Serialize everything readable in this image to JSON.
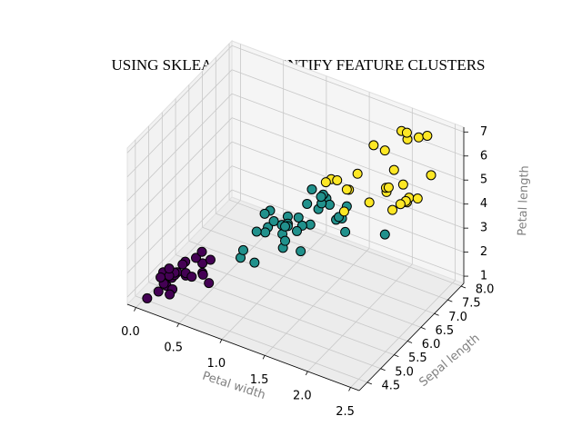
{
  "chart_data": {
    "type": "scatter3d",
    "title": "USING SKLEARN TO IDENTIFY FEATURE CLUSTERS",
    "x_label": "Petal width",
    "y_label": "Sepal length",
    "z_label": "Petal length",
    "xlim": [
      -0.1,
      2.6
    ],
    "ylim": [
      4.2,
      8.1
    ],
    "zlim": [
      0.7,
      7.2
    ],
    "xticks": [
      {
        "value": 0,
        "label": "0.0"
      },
      0.5,
      {
        "value": 1,
        "label": "1.0"
      },
      1.5,
      {
        "value": 2,
        "label": "2.0"
      },
      2.5
    ],
    "yticks": [
      4.5,
      {
        "value": 5,
        "label": "5.0"
      },
      5.5,
      {
        "value": 6,
        "label": "6.0"
      },
      6.5,
      {
        "value": 7,
        "label": "7.0"
      },
      7.5,
      {
        "value": 8,
        "label": "8.0"
      }
    ],
    "zticks": [
      1,
      2,
      3,
      4,
      5,
      6,
      7
    ],
    "grid": true,
    "series": [
      {
        "color": "#440154",
        "x": [
          0.2,
          0.2,
          0.2,
          0.2,
          0.2,
          0.4,
          0.3,
          0.2,
          0.2,
          0.1,
          0.2,
          0.2,
          0.1,
          0.1,
          0.2,
          0.4,
          0.4,
          0.3,
          0.3,
          0.3,
          0.5,
          0.2,
          0.4,
          0.6,
          0.3,
          0.2
        ],
        "y": [
          5.1,
          4.9,
          4.7,
          4.6,
          5.0,
          5.4,
          4.6,
          5.0,
          4.4,
          4.9,
          5.4,
          4.8,
          4.8,
          4.3,
          5.8,
          5.7,
          5.4,
          5.1,
          5.7,
          5.1,
          5.1,
          4.8,
          5.0,
          5.0,
          4.5,
          5.3
        ],
        "z": [
          1.4,
          1.4,
          1.3,
          1.5,
          1.4,
          1.7,
          1.4,
          1.5,
          1.4,
          1.5,
          1.5,
          1.6,
          1.4,
          1.1,
          1.2,
          1.5,
          1.3,
          1.4,
          1.7,
          1.5,
          1.7,
          1.9,
          1.6,
          1.6,
          1.3,
          1.5
        ]
      },
      {
        "color": "#21918c",
        "x": [
          1.3,
          1.5,
          1.3,
          1.6,
          1.0,
          1.3,
          1.4,
          1.0,
          1.5,
          1.0,
          1.4,
          1.3,
          1.4,
          1.5,
          1.0,
          1.5,
          1.1,
          1.8,
          1.3,
          1.2,
          1.1,
          1.0,
          1.2,
          1.6,
          1.5,
          1.3,
          1.1,
          1.3,
          1.9,
          1.7,
          1.8,
          2.0,
          1.8,
          2.4,
          1.5,
          1.3
        ],
        "y": [
          5.5,
          6.5,
          5.7,
          6.3,
          4.9,
          6.6,
          5.2,
          5.0,
          5.9,
          6.0,
          6.1,
          5.6,
          6.7,
          5.6,
          5.8,
          6.2,
          5.6,
          5.9,
          6.1,
          5.5,
          5.5,
          5.5,
          5.8,
          6.0,
          5.4,
          5.7,
          5.1,
          5.7,
          5.8,
          4.9,
          6.0,
          5.6,
          6.3,
          5.8,
          6.3,
          5.6
        ],
        "z": [
          4.0,
          4.6,
          4.5,
          4.7,
          3.3,
          4.6,
          3.9,
          3.5,
          4.2,
          4.0,
          4.7,
          3.6,
          4.4,
          4.5,
          4.1,
          4.5,
          3.9,
          4.8,
          4.0,
          4.4,
          3.8,
          3.7,
          3.9,
          5.1,
          4.5,
          4.2,
          3.0,
          4.1,
          5.1,
          4.5,
          4.8,
          4.9,
          4.9,
          5.1,
          4.9,
          4.2
        ]
      },
      {
        "color": "#fde725",
        "x": [
          1.4,
          1.5,
          1.4,
          1.7,
          2.5,
          2.1,
          1.8,
          2.2,
          2.1,
          1.8,
          1.8,
          2.5,
          2.0,
          2.1,
          2.2,
          2.3,
          2.0,
          2.1,
          2.4,
          2.3,
          2.3,
          2.5,
          2.3,
          1.8,
          2.0,
          2.3,
          1.9
        ],
        "y": [
          7.0,
          6.9,
          6.8,
          6.7,
          6.3,
          7.1,
          6.3,
          6.5,
          7.6,
          7.3,
          6.7,
          7.2,
          6.5,
          6.8,
          7.7,
          7.7,
          7.7,
          6.9,
          6.7,
          6.9,
          6.8,
          6.7,
          6.7,
          6.2,
          7.9,
          6.4,
          7.4
        ],
        "z": [
          4.7,
          4.9,
          4.8,
          5.0,
          6.0,
          5.9,
          5.6,
          5.8,
          6.6,
          6.3,
          5.8,
          6.1,
          5.1,
          5.5,
          6.7,
          6.9,
          6.7,
          5.4,
          5.6,
          5.1,
          5.9,
          5.7,
          5.2,
          4.8,
          6.4,
          5.3,
          6.1
        ]
      }
    ]
  }
}
